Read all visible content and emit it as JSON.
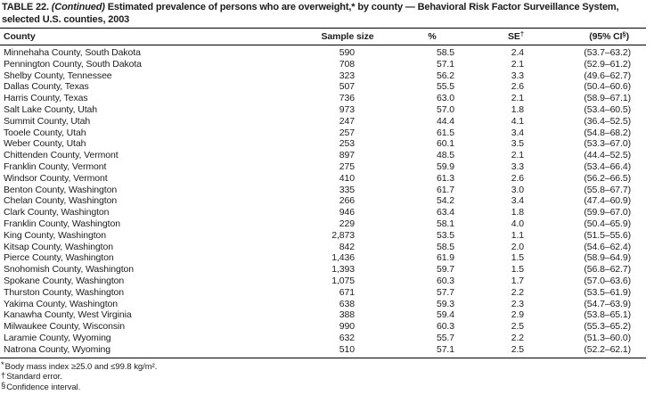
{
  "title": {
    "label": "TABLE 22.",
    "continued": "(Continued)",
    "text": "Estimated prevalence of persons who are overweight,* by county — Behavioral Risk Factor Surveillance System, selected U.S. counties, 2003"
  },
  "table": {
    "columns": {
      "county": "County",
      "sample_size": "Sample size",
      "percent": "%",
      "se": "SE",
      "se_sup": "†",
      "ci_pre": "(95% CI",
      "ci_sup": "§",
      "ci_close": ")"
    },
    "rows": [
      {
        "county": "Minnehaha County, South Dakota",
        "sample_size": "590",
        "pct": "58.5",
        "se": "2.4",
        "ci": "(53.7–63.2)"
      },
      {
        "county": "Pennington County, South Dakota",
        "sample_size": "708",
        "pct": "57.1",
        "se": "2.1",
        "ci": "(52.9–61.2)"
      },
      {
        "county": "Shelby County, Tennessee",
        "sample_size": "323",
        "pct": "56.2",
        "se": "3.3",
        "ci": "(49.6–62.7)"
      },
      {
        "county": "Dallas County, Texas",
        "sample_size": "507",
        "pct": "55.5",
        "se": "2.6",
        "ci": "(50.4–60.6)"
      },
      {
        "county": "Harris County, Texas",
        "sample_size": "736",
        "pct": "63.0",
        "se": "2.1",
        "ci": "(58.9–67.1)"
      },
      {
        "county": "Salt Lake County, Utah",
        "sample_size": "973",
        "pct": "57.0",
        "se": "1.8",
        "ci": "(53.4–60.5)"
      },
      {
        "county": "Summit County, Utah",
        "sample_size": "247",
        "pct": "44.4",
        "se": "4.1",
        "ci": "(36.4–52.5)"
      },
      {
        "county": "Tooele County, Utah",
        "sample_size": "257",
        "pct": "61.5",
        "se": "3.4",
        "ci": "(54.8–68.2)"
      },
      {
        "county": "Weber County, Utah",
        "sample_size": "253",
        "pct": "60.1",
        "se": "3.5",
        "ci": "(53.3–67.0)"
      },
      {
        "county": "Chittenden County, Vermont",
        "sample_size": "897",
        "pct": "48.5",
        "se": "2.1",
        "ci": "(44.4–52.5)"
      },
      {
        "county": "Franklin County, Vermont",
        "sample_size": "275",
        "pct": "59.9",
        "se": "3.3",
        "ci": "(53.4–66.4)"
      },
      {
        "county": "Windsor County, Vermont",
        "sample_size": "410",
        "pct": "61.3",
        "se": "2.6",
        "ci": "(56.2–66.5)"
      },
      {
        "county": "Benton County, Washington",
        "sample_size": "335",
        "pct": "61.7",
        "se": "3.0",
        "ci": "(55.8–67.7)"
      },
      {
        "county": "Chelan County, Washington",
        "sample_size": "266",
        "pct": "54.2",
        "se": "3.4",
        "ci": "(47.4–60.9)"
      },
      {
        "county": "Clark County, Washington",
        "sample_size": "946",
        "pct": "63.4",
        "se": "1.8",
        "ci": "(59.9–67.0)"
      },
      {
        "county": "Franklin County, Washington",
        "sample_size": "229",
        "pct": "58.1",
        "se": "4.0",
        "ci": "(50.4–65.9)"
      },
      {
        "county": "King County, Washington",
        "sample_size": "2,873",
        "pct": "53.5",
        "se": "1.1",
        "ci": "(51.5–55.6)"
      },
      {
        "county": "Kitsap County, Washington",
        "sample_size": "842",
        "pct": "58.5",
        "se": "2.0",
        "ci": "(54.6–62.4)"
      },
      {
        "county": "Pierce County, Washington",
        "sample_size": "1,436",
        "pct": "61.9",
        "se": "1.5",
        "ci": "(58.9–64.9)"
      },
      {
        "county": "Snohomish County, Washington",
        "sample_size": "1,393",
        "pct": "59.7",
        "se": "1.5",
        "ci": "(56.8–62.7)"
      },
      {
        "county": "Spokane County, Washington",
        "sample_size": "1,075",
        "pct": "60.3",
        "se": "1.7",
        "ci": "(57.0–63.6)"
      },
      {
        "county": "Thurston County, Washington",
        "sample_size": "671",
        "pct": "57.7",
        "se": "2.2",
        "ci": "(53.5–61.9)"
      },
      {
        "county": "Yakima County, Washington",
        "sample_size": "638",
        "pct": "59.3",
        "se": "2.3",
        "ci": "(54.7–63.9)"
      },
      {
        "county": "Kanawha County, West Virginia",
        "sample_size": "388",
        "pct": "59.4",
        "se": "2.9",
        "ci": "(53.8–65.1)"
      },
      {
        "county": "Milwaukee County, Wisconsin",
        "sample_size": "990",
        "pct": "60.3",
        "se": "2.5",
        "ci": "(55.3–65.2)"
      },
      {
        "county": "Laramie County, Wyoming",
        "sample_size": "632",
        "pct": "55.7",
        "se": "2.2",
        "ci": "(51.3–60.0)"
      },
      {
        "county": "Natrona County, Wyoming",
        "sample_size": "510",
        "pct": "57.1",
        "se": "2.5",
        "ci": "(52.2–62.1)"
      }
    ]
  },
  "footnotes": [
    {
      "sym": "*",
      "text": "Body mass index ≥25.0 and ≤99.8 kg/m²."
    },
    {
      "sym": "†",
      "text": "Standard error."
    },
    {
      "sym": "§",
      "text": "Confidence interval."
    }
  ]
}
